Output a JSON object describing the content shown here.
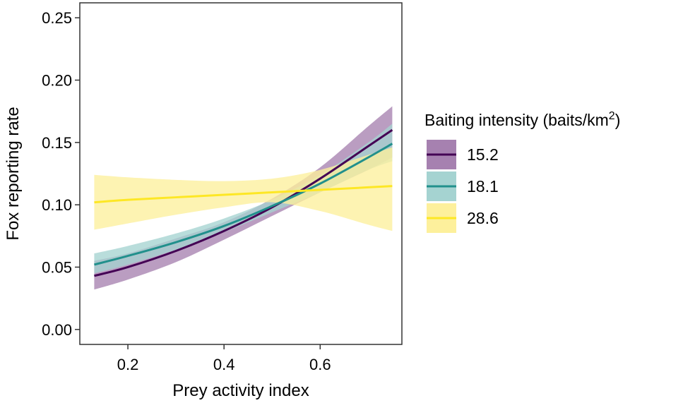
{
  "chart_data": {
    "type": "line",
    "xlabel": "Prey activity index",
    "ylabel": "Fox reporting rate",
    "xlim": [
      0.1,
      0.77
    ],
    "ylim": [
      -0.012,
      0.262
    ],
    "x_ticks": [
      {
        "value": 0.2,
        "label": "0.2"
      },
      {
        "value": 0.4,
        "label": "0.4"
      },
      {
        "value": 0.6,
        "label": "0.6"
      }
    ],
    "y_ticks": [
      {
        "value": 0.0,
        "label": "0.00"
      },
      {
        "value": 0.05,
        "label": "0.05"
      },
      {
        "value": 0.1,
        "label": "0.10"
      },
      {
        "value": 0.15,
        "label": "0.15"
      },
      {
        "value": 0.2,
        "label": "0.20"
      },
      {
        "value": 0.25,
        "label": "0.25"
      }
    ],
    "grid": false,
    "legend": {
      "title_prefix": "Baiting intensity (baits/km",
      "title_sup": "2",
      "title_suffix": ")",
      "position": "right"
    },
    "series": [
      {
        "name": "15.2",
        "color": "#440154",
        "fill": "#A681B0",
        "x": [
          0.13,
          0.2,
          0.3,
          0.4,
          0.5,
          0.6,
          0.7,
          0.75
        ],
        "y": [
          0.043,
          0.05,
          0.063,
          0.079,
          0.098,
          0.121,
          0.147,
          0.16
        ],
        "lower": [
          0.032,
          0.04,
          0.054,
          0.072,
          0.091,
          0.11,
          0.128,
          0.138
        ],
        "upper": [
          0.055,
          0.061,
          0.073,
          0.086,
          0.105,
          0.13,
          0.163,
          0.179
        ]
      },
      {
        "name": "18.1",
        "color": "#21908C",
        "fill": "#A5D3D1",
        "x": [
          0.13,
          0.2,
          0.3,
          0.4,
          0.5,
          0.6,
          0.7,
          0.75
        ],
        "y": [
          0.052,
          0.059,
          0.07,
          0.083,
          0.099,
          0.117,
          0.138,
          0.149
        ],
        "lower": [
          0.045,
          0.052,
          0.064,
          0.078,
          0.094,
          0.11,
          0.128,
          0.135
        ],
        "upper": [
          0.061,
          0.067,
          0.077,
          0.089,
          0.104,
          0.124,
          0.15,
          0.165
        ]
      },
      {
        "name": "28.6",
        "color": "#FDE725",
        "fill": "#FDF09C",
        "x": [
          0.13,
          0.2,
          0.3,
          0.4,
          0.5,
          0.6,
          0.7,
          0.75
        ],
        "y": [
          0.102,
          0.104,
          0.106,
          0.108,
          0.11,
          0.112,
          0.114,
          0.115
        ],
        "lower": [
          0.08,
          0.085,
          0.092,
          0.098,
          0.102,
          0.095,
          0.084,
          0.079
        ],
        "upper": [
          0.124,
          0.122,
          0.12,
          0.119,
          0.121,
          0.128,
          0.14,
          0.146
        ]
      }
    ]
  }
}
